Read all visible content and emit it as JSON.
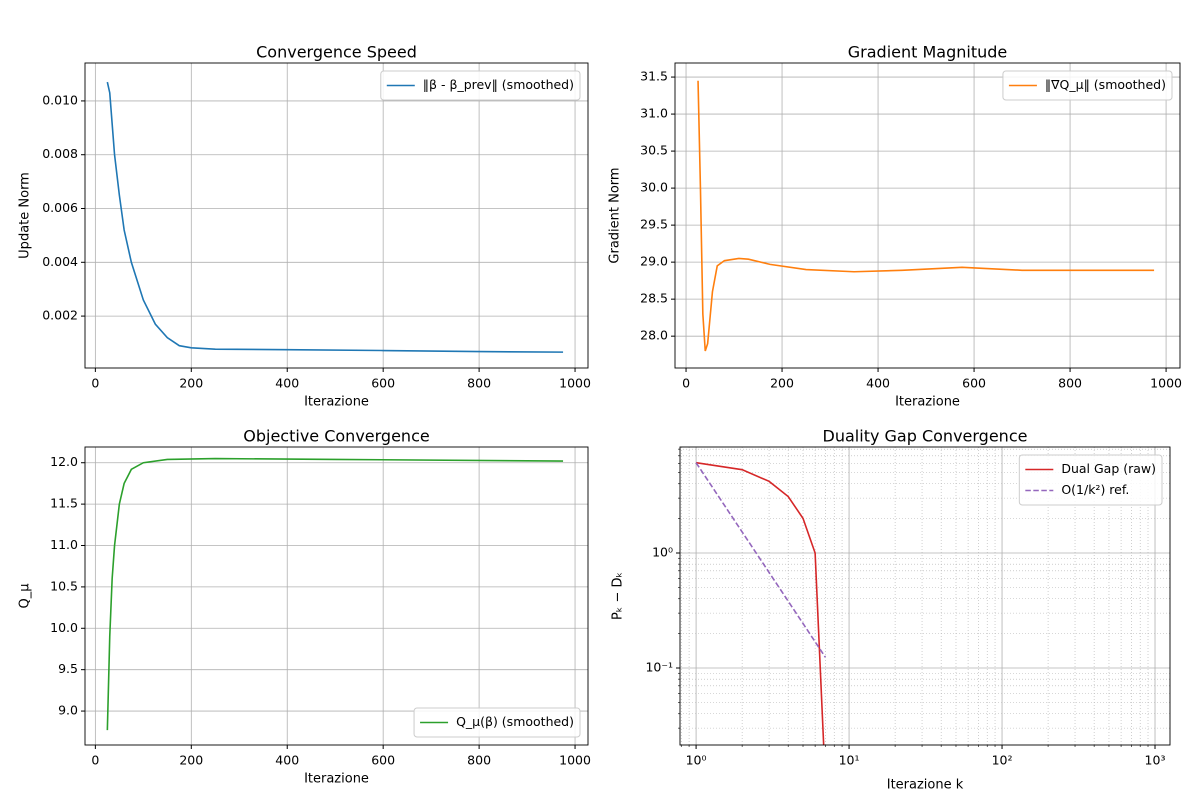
{
  "chart_data": [
    {
      "type": "line",
      "title": "Convergence Speed",
      "xlabel": "Iterazione",
      "ylabel": "Update Norm",
      "xlim": [
        -21.6,
        1027
      ],
      "ylim": [
        7e-05,
        0.01141
      ],
      "xticks": [
        0,
        200,
        400,
        600,
        800,
        1000
      ],
      "yticks": [
        0.002,
        0.004,
        0.006,
        0.008,
        {
          "value": 0.01,
          "label": "0.010"
        }
      ],
      "grid": true,
      "legend": "upper right",
      "series": [
        {
          "name": "‖β - β_prev‖ (smoothed)",
          "color": "#1f77b4",
          "x": [
            25,
            30,
            40,
            50,
            60,
            75,
            100,
            125,
            150,
            175,
            200,
            250,
            400,
            600,
            800,
            975
          ],
          "values": [
            0.0107,
            0.0103,
            0.008,
            0.0065,
            0.0052,
            0.004,
            0.0026,
            0.0017,
            0.0012,
            0.0009,
            0.00082,
            0.00077,
            0.00075,
            0.00072,
            0.00068,
            0.00066
          ]
        }
      ]
    },
    {
      "type": "line",
      "title": "Gradient Magnitude",
      "xlabel": "Iterazione",
      "ylabel": "Gradient Norm",
      "xlim": [
        -23,
        1029
      ],
      "ylim": [
        27.57,
        31.69
      ],
      "xticks": [
        0,
        200,
        400,
        600,
        800,
        1000
      ],
      "yticks": [
        {
          "value": 28,
          "label": "28.0"
        },
        28.5,
        {
          "value": 29,
          "label": "29.0"
        },
        29.5,
        {
          "value": 30,
          "label": "30.0"
        },
        30.5,
        {
          "value": 31,
          "label": "31.0"
        },
        31.5
      ],
      "grid": true,
      "legend": "upper right",
      "series": [
        {
          "name": "‖∇Q_μ‖ (smoothed)",
          "color": "#ff7f0e",
          "x": [
            25,
            30,
            35,
            40,
            45,
            55,
            65,
            80,
            110,
            130,
            175,
            250,
            350,
            450,
            575,
            700,
            850,
            975
          ],
          "values": [
            31.45,
            30.0,
            28.3,
            27.8,
            27.9,
            28.6,
            28.95,
            29.02,
            29.05,
            29.04,
            28.97,
            28.9,
            28.87,
            28.89,
            28.93,
            28.89,
            28.89,
            28.89
          ]
        }
      ]
    },
    {
      "type": "line",
      "title": "Objective Convergence",
      "xlabel": "Iterazione",
      "ylabel": "Q_μ",
      "xlim": [
        -21.6,
        1027
      ],
      "ylim": [
        8.59,
        12.19
      ],
      "xticks": [
        0,
        200,
        400,
        600,
        800,
        1000
      ],
      "yticks": [
        {
          "value": 9,
          "label": "9.0"
        },
        9.5,
        {
          "value": 10,
          "label": "10.0"
        },
        10.5,
        {
          "value": 11,
          "label": "11.0"
        },
        11.5,
        {
          "value": 12,
          "label": "12.0"
        }
      ],
      "grid": true,
      "legend": "lower right",
      "series": [
        {
          "name": "Q_μ(β) (smoothed)",
          "color": "#2ca02c",
          "x": [
            25,
            30,
            35,
            40,
            50,
            60,
            75,
            100,
            150,
            250,
            500,
            975
          ],
          "values": [
            8.77,
            9.9,
            10.6,
            11.0,
            11.5,
            11.75,
            11.92,
            12.0,
            12.04,
            12.05,
            12.04,
            12.02
          ]
        }
      ]
    },
    {
      "type": "line",
      "title": "Duality Gap Convergence",
      "xlabel": "Iterazione k",
      "ylabel": "Pₖ − Dₖ",
      "xscale": "log",
      "yscale": "log",
      "xlim": [
        0.785,
        1253
      ],
      "ylim": [
        0.0214,
        8.35
      ],
      "xticks": [
        {
          "value": 1,
          "label": "10⁰"
        },
        {
          "value": 10,
          "label": "10¹"
        },
        {
          "value": 100,
          "label": "10²"
        },
        {
          "value": 1000,
          "label": "10³"
        }
      ],
      "yticks": [
        {
          "value": 0.1,
          "label": "10⁻¹"
        },
        {
          "value": 1,
          "label": "10⁰"
        }
      ],
      "grid": true,
      "legend": "upper right",
      "series": [
        {
          "name": "Dual Gap (raw)",
          "color": "#d62728",
          "x": [
            1,
            2,
            3,
            4,
            5,
            6,
            7
          ],
          "values": [
            6.1,
            5.3,
            4.2,
            3.1,
            2.0,
            1.0,
            0.01
          ]
        },
        {
          "name": "O(1/k²) ref.",
          "color": "#9467bd",
          "linestyle": "--",
          "x": [
            1,
            2,
            3,
            4,
            5,
            6,
            7
          ],
          "values": [
            6.1,
            1.525,
            0.678,
            0.381,
            0.244,
            0.169,
            0.124
          ]
        }
      ]
    }
  ]
}
